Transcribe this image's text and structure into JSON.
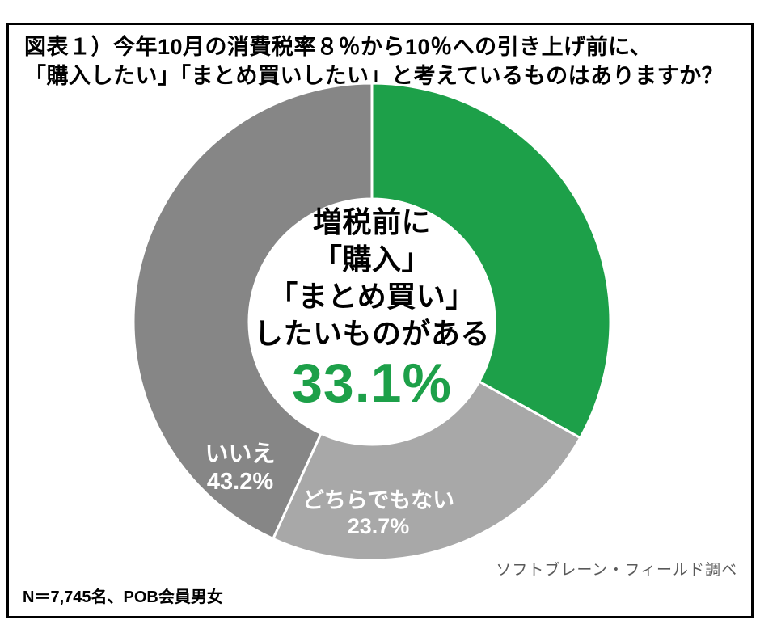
{
  "frame": {
    "title_line1": "図表１）今年10月の消費税率８％から10％への引き上げ前に、",
    "title_line2": "「購入したい」「まとめ買いしたい」と考えているものはありますか？",
    "source": "ソフトブレーン・フィールド調べ",
    "footnote": "N＝7,745名、POB会員男女"
  },
  "colors": {
    "green": "#1DA049",
    "gray_dark": "#868686",
    "gray_light": "#A8A8A8",
    "slice_label_text": "#FFFFFF",
    "source_text": "#595959",
    "border": "#000000"
  },
  "chart_data": {
    "type": "pie",
    "subtype": "donut",
    "title": "図表１）今年10月の消費税率８％から10％への引き上げ前に、「購入したい」「まとめ買いしたい」と考えているものはありますか？",
    "legend_position": "none",
    "start_angle_deg": 0,
    "direction": "clockwise",
    "hole_ratio": 0.51,
    "units": "%",
    "total": 100,
    "slices": [
      {
        "label": "増税前に「購入」「まとめ買い」したいものがある",
        "value": 33.1,
        "pct_text": "33.1%",
        "color": "#1DA049",
        "label_position": "center"
      },
      {
        "label": "どちらでもない",
        "value": 23.7,
        "pct_text": "23.7%",
        "color": "#A8A8A8",
        "label_position": "inside"
      },
      {
        "label": "いいえ",
        "value": 43.2,
        "pct_text": "43.2%",
        "color": "#868686",
        "label_position": "inside"
      }
    ],
    "center_label": {
      "lines": [
        "増税前に",
        "「購入」",
        "「まとめ買い」",
        "したいものがある"
      ],
      "value_text": "33.1%",
      "value_color": "#1DA049"
    }
  }
}
